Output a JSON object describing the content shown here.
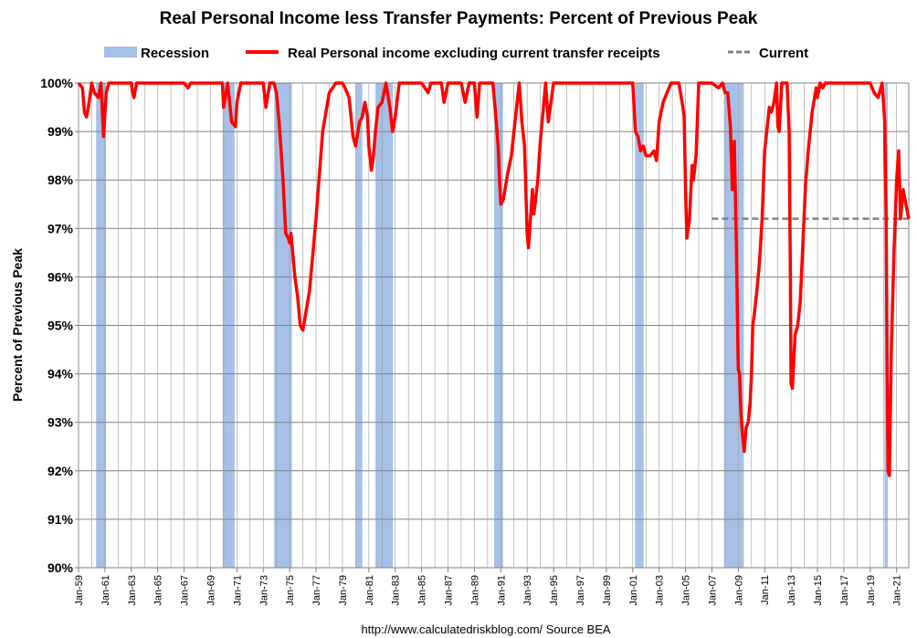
{
  "chart_data": {
    "type": "line",
    "title": "Real Personal Income less Transfer Payments: Percent of Previous Peak",
    "ylabel": "Percent of Previous Peak",
    "xlabel": "",
    "source": "http://www.calculatedriskblog.com/   Source BEA",
    "ylim": [
      90,
      100
    ],
    "xlim": [
      1959.0,
      2021.92
    ],
    "yticks": [
      "90%",
      "91%",
      "92%",
      "93%",
      "94%",
      "95%",
      "96%",
      "97%",
      "98%",
      "99%",
      "100%"
    ],
    "xticks": [
      {
        "label": "Jan-59",
        "x": 1959
      },
      {
        "label": "Jan-61",
        "x": 1961
      },
      {
        "label": "Jan-63",
        "x": 1963
      },
      {
        "label": "Jan-65",
        "x": 1965
      },
      {
        "label": "Jan-67",
        "x": 1967
      },
      {
        "label": "Jan-69",
        "x": 1969
      },
      {
        "label": "Jan-71",
        "x": 1971
      },
      {
        "label": "Jan-73",
        "x": 1973
      },
      {
        "label": "Jan-75",
        "x": 1975
      },
      {
        "label": "Jan-77",
        "x": 1977
      },
      {
        "label": "Jan-79",
        "x": 1979
      },
      {
        "label": "Jan-81",
        "x": 1981
      },
      {
        "label": "Jan-83",
        "x": 1983
      },
      {
        "label": "Jan-85",
        "x": 1985
      },
      {
        "label": "Jan-87",
        "x": 1987
      },
      {
        "label": "Jan-89",
        "x": 1989
      },
      {
        "label": "Jan-91",
        "x": 1991
      },
      {
        "label": "Jan-93",
        "x": 1993
      },
      {
        "label": "Jan-95",
        "x": 1995
      },
      {
        "label": "Jan-97",
        "x": 1997
      },
      {
        "label": "Jan-99",
        "x": 1999
      },
      {
        "label": "Jan-01",
        "x": 2001
      },
      {
        "label": "Jan-03",
        "x": 2003
      },
      {
        "label": "Jan-05",
        "x": 2005
      },
      {
        "label": "Jan-07",
        "x": 2007
      },
      {
        "label": "Jan-09",
        "x": 2009
      },
      {
        "label": "Jan-11",
        "x": 2011
      },
      {
        "label": "Jan-13",
        "x": 2013
      },
      {
        "label": "Jan-15",
        "x": 2015
      },
      {
        "label": "Jan-17",
        "x": 2017
      },
      {
        "label": "Jan-19",
        "x": 2019
      },
      {
        "label": "Jan-21",
        "x": 2021
      }
    ],
    "grid": true,
    "legend": {
      "placement": "top",
      "entries": [
        {
          "name": "Recession",
          "kind": "band",
          "color": "#a6c0e8"
        },
        {
          "name": "Real Personal income excluding current transfer receipts",
          "kind": "line",
          "color": "#ff0000"
        },
        {
          "name": "Current",
          "kind": "dashed",
          "color": "#808080"
        }
      ]
    },
    "recessions": [
      [
        1960.33,
        1961.08
      ],
      [
        1969.92,
        1970.83
      ],
      [
        1973.83,
        1975.17
      ],
      [
        1980.0,
        1980.5
      ],
      [
        1981.5,
        1982.83
      ],
      [
        1990.5,
        1991.17
      ],
      [
        2001.17,
        2001.83
      ],
      [
        2007.92,
        2009.42
      ],
      [
        2020.08,
        2020.33
      ]
    ],
    "current_line": {
      "y": 97.2,
      "x_start": 2007.0,
      "x_end": 2021.92,
      "color": "#808080"
    },
    "series": [
      {
        "name": "Real Personal income excluding current transfer receipts",
        "color": "#ff0000",
        "x": [
          1959.0,
          1959.3,
          1959.45,
          1959.6,
          1959.75,
          1960.0,
          1960.2,
          1960.5,
          1960.7,
          1960.9,
          1961.1,
          1961.3,
          1962.0,
          1962.5,
          1963.0,
          1963.1,
          1963.2,
          1963.4,
          1964.0,
          1966.0,
          1967.0,
          1967.3,
          1967.5,
          1968.0,
          1969.5,
          1969.9,
          1970.0,
          1970.3,
          1970.6,
          1970.9,
          1971.0,
          1971.3,
          1972.0,
          1972.8,
          1973.0,
          1973.2,
          1973.5,
          1973.8,
          1974.0,
          1974.2,
          1974.35,
          1974.5,
          1974.7,
          1974.9,
          1975.0,
          1975.1,
          1975.2,
          1975.4,
          1975.6,
          1975.8,
          1976.0,
          1976.5,
          1977.0,
          1977.5,
          1978.0,
          1978.5,
          1979.0,
          1979.2,
          1979.5,
          1979.8,
          1980.0,
          1980.3,
          1980.5,
          1980.7,
          1980.9,
          1981.0,
          1981.2,
          1981.35,
          1981.5,
          1981.7,
          1982.0,
          1982.3,
          1982.6,
          1982.8,
          1983.0,
          1983.3,
          1983.6,
          1984.0,
          1985.0,
          1985.5,
          1985.7,
          1986.0,
          1986.5,
          1986.7,
          1987.0,
          1988.0,
          1988.3,
          1988.6,
          1989.0,
          1989.2,
          1989.4,
          1989.6,
          1990.0,
          1990.4,
          1990.6,
          1990.8,
          1990.9,
          1991.0,
          1991.2,
          1991.5,
          1991.8,
          1992.0,
          1992.2,
          1992.4,
          1992.6,
          1992.8,
          1993.0,
          1993.1,
          1993.2,
          1993.4,
          1993.5,
          1993.6,
          1993.8,
          1994.0,
          1994.2,
          1994.4,
          1994.6,
          1994.8,
          1995.0,
          1995.3,
          1995.6,
          1996.0,
          1997.0,
          1998.0,
          1999.0,
          2000.0,
          2001.0,
          2001.2,
          2001.4,
          2001.6,
          2001.8,
          2002.0,
          2002.3,
          2002.6,
          2002.8,
          2003.0,
          2003.3,
          2003.6,
          2003.9,
          2004.2,
          2004.5,
          2004.8,
          2004.9,
          2005.0,
          2005.1,
          2005.3,
          2005.5,
          2005.6,
          2005.8,
          2006.0,
          2006.5,
          2007.0,
          2007.5,
          2007.8,
          2008.0,
          2008.2,
          2008.4,
          2008.55,
          2008.7,
          2008.85,
          2009.0,
          2009.1,
          2009.2,
          2009.3,
          2009.45,
          2009.6,
          2009.75,
          2009.9,
          2010.0,
          2010.1,
          2010.2,
          2010.4,
          2010.6,
          2010.8,
          2011.0,
          2011.2,
          2011.35,
          2011.5,
          2011.7,
          2011.9,
          2012.0,
          2012.1,
          2012.3,
          2012.5,
          2012.7,
          2012.85,
          2012.95,
          2013.0,
          2013.1,
          2013.3,
          2013.5,
          2013.7,
          2013.9,
          2014.1,
          2014.3,
          2014.6,
          2014.9,
          2015.0,
          2015.2,
          2015.4,
          2015.6,
          2015.8,
          2016.0,
          2016.5,
          2017.0,
          2018.0,
          2019.0,
          2019.3,
          2019.6,
          2019.9,
          2020.0,
          2020.1,
          2020.2,
          2020.3,
          2020.35,
          2020.45,
          2020.6,
          2020.8,
          2021.0,
          2021.15,
          2021.3,
          2021.5,
          2021.7,
          2021.92
        ],
        "y": [
          100,
          99.9,
          99.4,
          99.3,
          99.5,
          100,
          99.8,
          99.7,
          100,
          98.9,
          99.8,
          100,
          100,
          100,
          100,
          99.8,
          99.7,
          100,
          100,
          100,
          100,
          99.9,
          100,
          100,
          100,
          100,
          99.5,
          100,
          99.2,
          99.1,
          99.6,
          100,
          100,
          100,
          100,
          99.5,
          100,
          100,
          99.8,
          99.2,
          98.6,
          98.0,
          96.9,
          96.8,
          96.7,
          96.9,
          96.6,
          96.0,
          95.6,
          95.0,
          94.9,
          95.7,
          97.2,
          99.0,
          99.8,
          100,
          100,
          99.9,
          99.7,
          98.9,
          98.7,
          99.2,
          99.3,
          99.6,
          99.3,
          98.7,
          98.2,
          98.5,
          99.0,
          99.5,
          99.6,
          100,
          99.5,
          99.0,
          99.3,
          100,
          100,
          100,
          100,
          99.8,
          100,
          100,
          100,
          99.6,
          100,
          100,
          99.6,
          100,
          100,
          99.3,
          100,
          100,
          100,
          100,
          99.4,
          98.7,
          98.0,
          97.5,
          97.6,
          98.1,
          98.5,
          99.0,
          99.5,
          100,
          99.2,
          98.7,
          96.9,
          96.6,
          97.0,
          97.8,
          97.3,
          97.5,
          98.0,
          98.8,
          99.4,
          100,
          99.2,
          99.6,
          100,
          100,
          100,
          100,
          100,
          100,
          100,
          100,
          100,
          99.0,
          98.9,
          98.6,
          98.7,
          98.5,
          98.5,
          98.6,
          98.4,
          99.2,
          99.6,
          99.8,
          100,
          100,
          100,
          99.5,
          99.3,
          97.8,
          96.8,
          97.2,
          98.3,
          98.0,
          98.5,
          100,
          100,
          100,
          99.9,
          100,
          99.8,
          99.8,
          99.1,
          97.8,
          98.8,
          96.7,
          94.1,
          94.0,
          93.2,
          92.8,
          92.4,
          92.9,
          93.0,
          93.4,
          94.0,
          95.0,
          95.2,
          95.7,
          96.3,
          97.2,
          98.6,
          99.1,
          99.5,
          99.4,
          99.6,
          100,
          99.1,
          99.0,
          100,
          100,
          100,
          99.0,
          96.0,
          93.8,
          93.7,
          94.8,
          95.0,
          95.5,
          96.7,
          97.9,
          98.6,
          99.4,
          99.9,
          99.7,
          100,
          99.9,
          100,
          100,
          100,
          100,
          100,
          100,
          100,
          99.8,
          99.7,
          100,
          99.6,
          99.2,
          97.2,
          93.4,
          92.0,
          91.9,
          94.5,
          96.5,
          98.0,
          98.6,
          97.2,
          97.8,
          97.5,
          97.2
        ]
      }
    ]
  }
}
